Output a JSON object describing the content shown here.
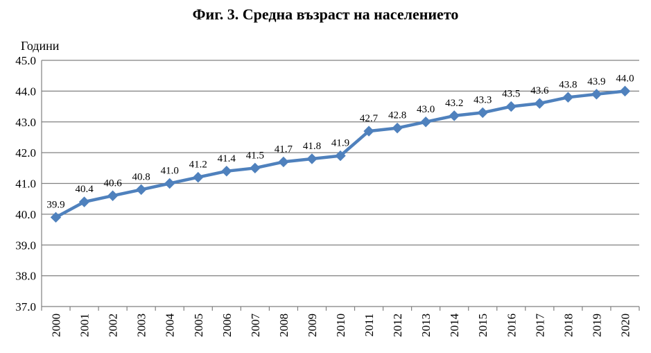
{
  "chart_data": {
    "type": "line",
    "title": "Фиг. 3. Средна възраст на населението",
    "ylabel": "Години",
    "xlabel": "",
    "ylim": [
      37.0,
      45.0
    ],
    "yticks": [
      "37.0",
      "38.0",
      "39.0",
      "40.0",
      "41.0",
      "42.0",
      "43.0",
      "44.0",
      "45.0"
    ],
    "grid": true,
    "legend": "none",
    "categories": [
      "2000",
      "2001",
      "2002",
      "2003",
      "2004",
      "2005",
      "2006",
      "2007",
      "2008",
      "2009",
      "2010",
      "2011",
      "2012",
      "2013",
      "2014",
      "2015",
      "2016",
      "2017",
      "2018",
      "2019",
      "2020"
    ],
    "values": [
      39.9,
      40.4,
      40.6,
      40.8,
      41.0,
      41.2,
      41.4,
      41.5,
      41.7,
      41.8,
      41.9,
      42.7,
      42.8,
      43.0,
      43.2,
      43.3,
      43.5,
      43.6,
      43.8,
      43.9,
      44.0
    ],
    "data_labels": [
      "39.9",
      "40.4",
      "40.6",
      "40.8",
      "41.0",
      "41.2",
      "41.4",
      "41.5",
      "41.7",
      "41.8",
      "41.9",
      "42.7",
      "42.8",
      "43.0",
      "43.2",
      "43.3",
      "43.5",
      "43.6",
      "43.8",
      "43.9",
      "44.0"
    ],
    "line_color": "#4F81BD"
  }
}
